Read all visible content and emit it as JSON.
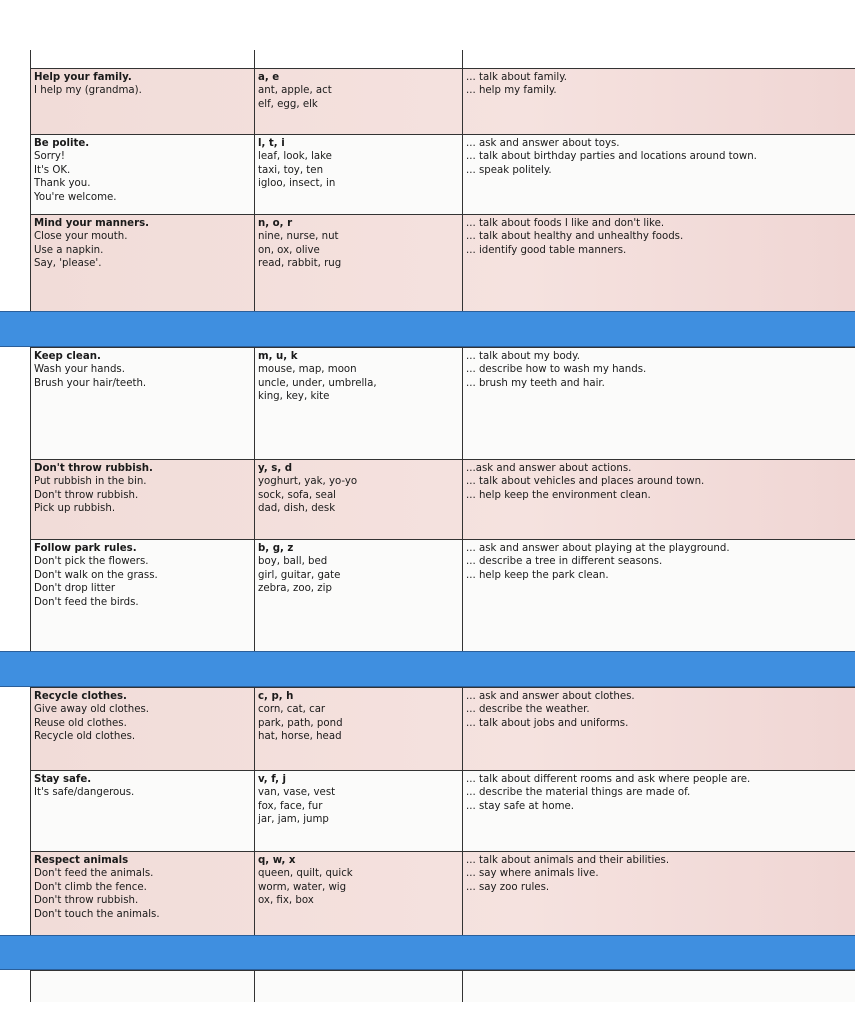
{
  "colors": {
    "band": "#3f8fe0",
    "pink_row": "#f3dfdb",
    "white_row": "#fbfbfa"
  },
  "rows": [
    {
      "type": "row",
      "shade": "pink",
      "values": [
        "Help your family.",
        "I help my (grandma)."
      ],
      "letters": "a, e",
      "words": [
        "ant, apple, act",
        "elf, egg, elk"
      ],
      "outcomes": [
        "... talk about family.",
        "... help my family."
      ]
    },
    {
      "type": "row",
      "shade": "white",
      "values": [
        "Be polite.",
        "Sorry!",
        "It's OK.",
        "Thank you.",
        "You're welcome."
      ],
      "letters": "l, t, i",
      "words": [
        "leaf, look, lake",
        "taxi, toy, ten",
        "igloo, insect, in"
      ],
      "outcomes": [
        "... ask and answer about toys.",
        "... talk about birthday parties and locations around town.",
        "... speak politely."
      ]
    },
    {
      "type": "row",
      "shade": "pink",
      "values": [
        "Mind your manners.",
        "Close your mouth.",
        "Use a napkin.",
        "Say, 'please'."
      ],
      "letters": "n, o, r",
      "words": [
        "nine, nurse, nut",
        "on, ox, olive",
        "read, rabbit, rug"
      ],
      "outcomes": [
        "... talk about foods I like and don't like.",
        "... talk about healthy and unhealthy foods.",
        "... identify good table manners."
      ]
    },
    {
      "type": "band"
    },
    {
      "type": "row",
      "shade": "white",
      "values": [
        "Keep clean.",
        "Wash your hands.",
        "Brush your hair/teeth."
      ],
      "letters": "m, u, k",
      "words": [
        "mouse, map, moon",
        "uncle, under, umbrella,",
        "king, key, kite"
      ],
      "outcomes": [
        "... talk about my body.",
        "... describe how to wash my hands.",
        "... brush my teeth and hair."
      ]
    },
    {
      "type": "row",
      "shade": "pink",
      "values": [
        "Don't throw rubbish.",
        "Put rubbish in the bin.",
        "Don't throw rubbish.",
        "Pick up rubbish."
      ],
      "letters": "y, s, d",
      "words": [
        "yoghurt, yak, yo-yo",
        "sock, sofa, seal",
        "dad, dish, desk"
      ],
      "outcomes": [
        "...ask and answer about actions.",
        "... talk about vehicles and places around town.",
        "... help keep the environment clean."
      ]
    },
    {
      "type": "row",
      "shade": "white",
      "values": [
        "Follow park rules.",
        "Don't pick the flowers.",
        "Don't walk on the grass.",
        "Don't drop litter",
        "Don't feed the birds."
      ],
      "letters": "b, g, z",
      "words": [
        "boy, ball, bed",
        "girl, guitar, gate",
        "zebra, zoo, zip"
      ],
      "outcomes": [
        "... ask and answer about playing at the playground.",
        "... describe a tree in different seasons.",
        "... help keep the park clean."
      ]
    },
    {
      "type": "band"
    },
    {
      "type": "row",
      "shade": "pink",
      "values": [
        "Recycle clothes.",
        "Give away old clothes.",
        "Reuse old clothes.",
        "Recycle old clothes."
      ],
      "letters": "c, p, h",
      "words": [
        "corn, cat, car",
        "park, path, pond",
        "hat, horse, head"
      ],
      "outcomes": [
        "... ask and answer about clothes.",
        "... describe the weather.",
        "... talk about jobs and uniforms."
      ]
    },
    {
      "type": "row",
      "shade": "white",
      "values": [
        "Stay safe.",
        "It's safe/dangerous."
      ],
      "letters": "v, f, j",
      "words": [
        "van, vase, vest",
        "fox, face, fur",
        "jar, jam, jump"
      ],
      "outcomes": [
        "... talk about different rooms and ask where people are.",
        "... describe the material things are made of.",
        "... stay safe at home."
      ]
    },
    {
      "type": "row",
      "shade": "pink",
      "values": [
        "Respect animals",
        "Don't feed the animals.",
        "Don't climb the fence.",
        "Don't throw rubbish.",
        "Don't touch the animals."
      ],
      "letters": "q, w, x",
      "words": [
        "queen, quilt, quick",
        "worm, water, wig",
        "ox, fix, box"
      ],
      "outcomes": [
        "... talk about animals and their abilities.",
        "... say where animals live.",
        "... say zoo rules."
      ]
    },
    {
      "type": "band"
    },
    {
      "type": "row",
      "shade": "white",
      "values": [],
      "letters": "",
      "words": [],
      "outcomes": []
    }
  ]
}
